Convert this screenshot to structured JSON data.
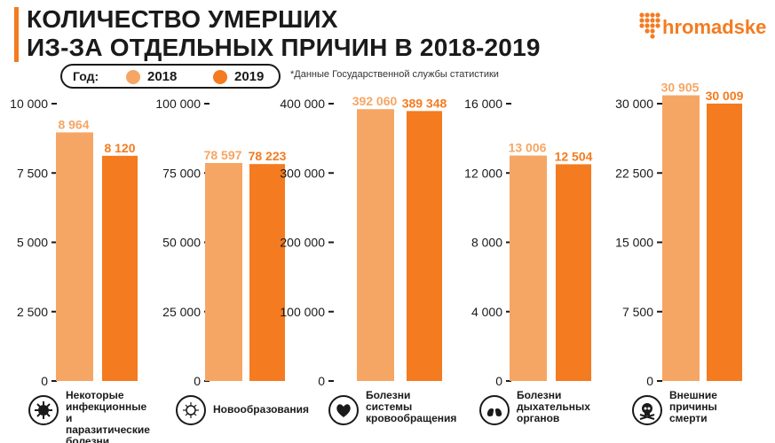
{
  "header": {
    "title_line1": "КОЛИЧЕСТВО УМЕРШИХ",
    "title_line2": "ИЗ-ЗА ОТДЕЛЬНЫХ ПРИЧИН В 2018-2019",
    "logo_text": "hromadske",
    "legend_label": "Год:",
    "legend_2018": "2018",
    "legend_2019": "2019",
    "source_note": "*Данные Государственной службы статистики"
  },
  "colors": {
    "y2018": "#f6a664",
    "y2019": "#f47b20",
    "text": "#1a1a1a"
  },
  "chart_data": [
    {
      "type": "bar",
      "categories": [
        "2018",
        "2019"
      ],
      "values": [
        8964,
        8120
      ],
      "value_labels": [
        "8 964",
        "8 120"
      ],
      "ylim": [
        0,
        10000
      ],
      "ticks": [
        "0",
        "2 500",
        "5 000",
        "7 500",
        "10 000"
      ],
      "tick_values": [
        0,
        2500,
        5000,
        7500,
        10000
      ],
      "xlabel": "Некоторые инфекционные и паразитические болезни",
      "icon": "virus-icon"
    },
    {
      "type": "bar",
      "categories": [
        "2018",
        "2019"
      ],
      "values": [
        78597,
        78223
      ],
      "value_labels": [
        "78 597",
        "78 223"
      ],
      "ylim": [
        0,
        100000
      ],
      "ticks": [
        "0",
        "25 000",
        "50 000",
        "75 000",
        "100 000"
      ],
      "tick_values": [
        0,
        25000,
        50000,
        75000,
        100000
      ],
      "xlabel": "Новообразования",
      "icon": "cell-icon"
    },
    {
      "type": "bar",
      "categories": [
        "2018",
        "2019"
      ],
      "values": [
        392060,
        389348
      ],
      "value_labels": [
        "392 060",
        "389 348"
      ],
      "ylim": [
        0,
        400000
      ],
      "ticks": [
        "0",
        "100 000",
        "200 000",
        "300 000",
        "400 000"
      ],
      "tick_values": [
        0,
        100000,
        200000,
        300000,
        400000
      ],
      "xlabel": "Болезни системы кровообращения",
      "icon": "heart-icon"
    },
    {
      "type": "bar",
      "categories": [
        "2018",
        "2019"
      ],
      "values": [
        13006,
        12504
      ],
      "value_labels": [
        "13 006",
        "12 504"
      ],
      "ylim": [
        0,
        16000
      ],
      "ticks": [
        "0",
        "4 000",
        "8 000",
        "12 000",
        "16 000"
      ],
      "tick_values": [
        0,
        4000,
        8000,
        12000,
        16000
      ],
      "xlabel": "Болезни дыхательных органов",
      "icon": "lungs-icon"
    },
    {
      "type": "bar",
      "categories": [
        "2018",
        "2019"
      ],
      "values": [
        30905,
        30009
      ],
      "value_labels": [
        "30 905",
        "30 009"
      ],
      "ylim": [
        0,
        30000
      ],
      "ticks": [
        "0",
        "7 500",
        "15 000",
        "22 500",
        "30 000"
      ],
      "tick_values": [
        0,
        7500,
        15000,
        22500,
        30000
      ],
      "xlabel": "Внешние причины смерти",
      "icon": "skull-icon"
    }
  ],
  "category_labels": [
    "Некоторые\nинфекционные\nи паразитические\nболезни",
    "Новообразования",
    "Болезни системы\nкровообращения",
    "Болезни\nдыхательных\nорганов",
    "Внешние причины\nсмерти"
  ]
}
